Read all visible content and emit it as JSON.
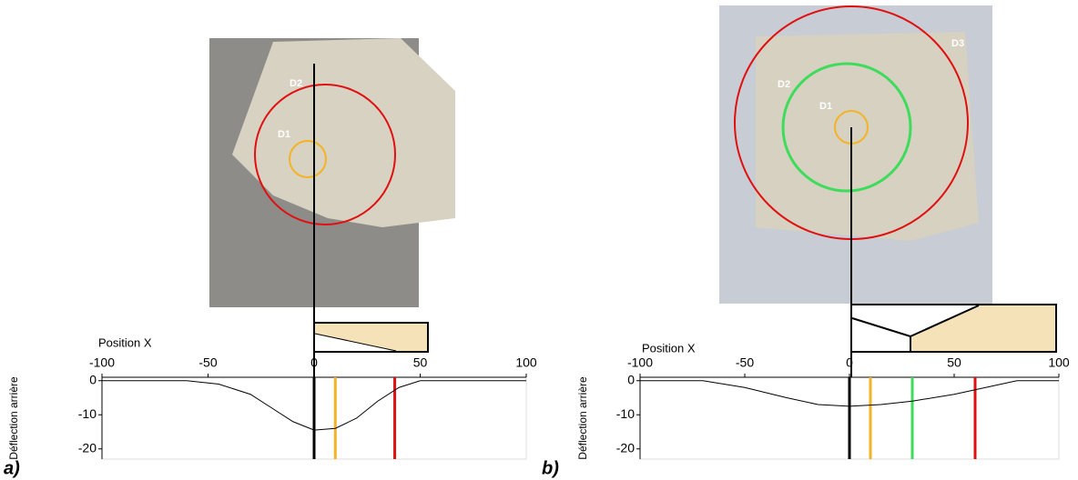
{
  "chart_data": [
    {
      "type": "line",
      "panel_label": "a)",
      "x_label": "Position X",
      "y_label": "Déflection arrière",
      "xlim": [
        -100,
        100
      ],
      "xticks": [
        -100,
        -50,
        0,
        50,
        100
      ],
      "ylim": [
        -23,
        1
      ],
      "yticks": [
        0,
        -10,
        -20
      ],
      "annotations": [
        "D1",
        "D2"
      ],
      "series": [
        {
          "color": "#000000",
          "x": [
            -100,
            -60,
            -45,
            -30,
            -20,
            -10,
            0,
            10,
            20,
            30,
            40,
            50,
            100
          ],
          "values": [
            0,
            0,
            -1,
            -4,
            -8,
            -12,
            -14.5,
            -14,
            -11,
            -6,
            -2,
            0,
            0
          ]
        }
      ],
      "vlines": [
        {
          "x": 0,
          "color": "#000000"
        },
        {
          "x": 10,
          "color": "#f4b324"
        },
        {
          "x": 38,
          "color": "#e01010"
        }
      ]
    },
    {
      "type": "line",
      "panel_label": "b)",
      "x_label": "Position X",
      "y_label": "Déflection arrière",
      "xlim": [
        -100,
        100
      ],
      "xticks": [
        -100,
        -50,
        0,
        50,
        100
      ],
      "ylim": [
        -23,
        1
      ],
      "yticks": [
        0,
        -10,
        -20
      ],
      "annotations": [
        "D1",
        "D2",
        "D3"
      ],
      "series": [
        {
          "color": "#000000",
          "x": [
            -100,
            -70,
            -50,
            -30,
            -15,
            0,
            15,
            30,
            50,
            65,
            80,
            100
          ],
          "values": [
            0,
            0,
            -2,
            -5,
            -7,
            -7.5,
            -7,
            -6,
            -4,
            -2,
            0,
            0
          ]
        }
      ],
      "vlines": [
        {
          "x": 0,
          "color": "#000000"
        },
        {
          "x": 10,
          "color": "#f4b324"
        },
        {
          "x": 30,
          "color": "#3ddc5a"
        },
        {
          "x": 60,
          "color": "#e01010"
        }
      ]
    }
  ]
}
